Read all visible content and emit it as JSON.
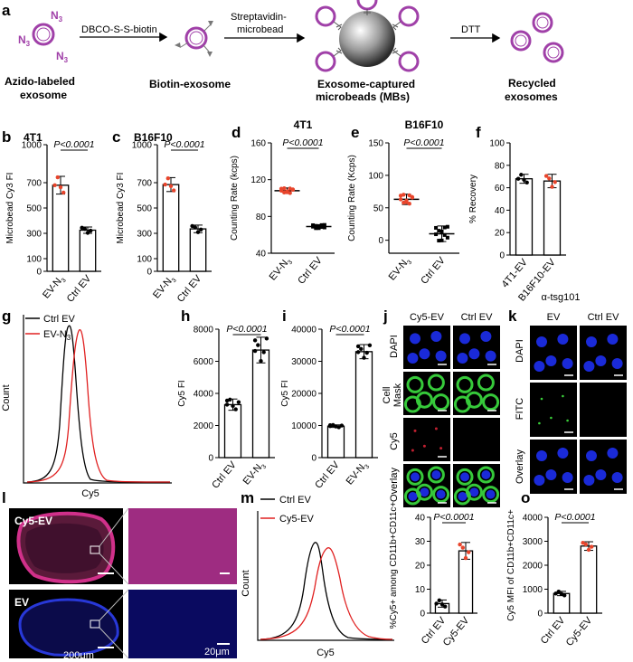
{
  "panel_a": {
    "letter": "a",
    "n3": "N",
    "n3_sub": "3",
    "steps": [
      "DBCO-S-S-biotin",
      "Streptavidin-",
      "microbead",
      "DTT"
    ],
    "stages": [
      "Azido-labeled",
      "exosome",
      "Biotin-exosome",
      "Exosome-captured",
      "microbeads (MBs)",
      "Recycled",
      "exosomes"
    ]
  },
  "chart_data": [
    {
      "id": "b",
      "type": "bar",
      "title": "4T1",
      "ylabel": "Microbead Cy3 FI",
      "categories": [
        "EV-N3",
        "Ctrl EV"
      ],
      "values": [
        680,
        325
      ],
      "errors": [
        70,
        25
      ],
      "ylim": [
        0,
        1000
      ],
      "yticks": [
        0,
        100,
        300,
        500,
        700,
        1000
      ],
      "significance": "P<0.0001",
      "bar_fill": "#ffffff",
      "point_color": "#e8452c"
    },
    {
      "id": "c",
      "type": "bar",
      "title": "B16F10",
      "ylabel": "Microbead Cy3 FI",
      "categories": [
        "EV-N3",
        "Ctrl EV"
      ],
      "values": [
        685,
        335
      ],
      "errors": [
        55,
        30
      ],
      "ylim": [
        0,
        1000
      ],
      "yticks": [
        0,
        100,
        300,
        500,
        700,
        1000
      ],
      "significance": "P<0.0001",
      "bar_fill": "#ffffff",
      "point_color": "#e8452c"
    },
    {
      "id": "d",
      "type": "scatter",
      "title": "4T1",
      "ylabel": "Counting Rate (kcps)",
      "categories": [
        "EV-N3",
        "Ctrl EV"
      ],
      "values": [
        108,
        69
      ],
      "errors": [
        3,
        2
      ],
      "ylim": [
        40,
        160
      ],
      "yticks": [
        40,
        80,
        120,
        160
      ],
      "significance": "P<0.0001"
    },
    {
      "id": "e",
      "type": "scatter",
      "title": "B16F10",
      "ylabel": "Counting Rate (Kcps)",
      "categories": [
        "EV-N3",
        "Ctrl EV"
      ],
      "values": [
        63,
        10
      ],
      "errors": [
        8,
        12
      ],
      "ylim": [
        -20,
        150
      ],
      "yticks": [
        0,
        50,
        100,
        150
      ],
      "significance": "P<0.0001"
    },
    {
      "id": "f",
      "type": "bar",
      "title": "",
      "ylabel": "% Recovery",
      "categories": [
        "4T1-EV",
        "B16F10-EV"
      ],
      "values": [
        68,
        66
      ],
      "errors": [
        4,
        6
      ],
      "ylim": [
        0,
        100
      ],
      "yticks": [
        0,
        20,
        40,
        60,
        80,
        100
      ],
      "significance": ""
    },
    {
      "id": "h",
      "type": "bar",
      "title": "",
      "ylabel": "Cy5 FI",
      "categories": [
        "Ctrl EV",
        "EV-N3"
      ],
      "values": [
        3300,
        6700
      ],
      "errors": [
        350,
        800
      ],
      "ylim": [
        0,
        8000
      ],
      "yticks": [
        0,
        2000,
        4000,
        6000,
        8000
      ],
      "significance": "P<0.0001"
    },
    {
      "id": "i",
      "type": "bar",
      "title": "",
      "ylabel": "Cy5 FI",
      "categories": [
        "Ctrl EV",
        "EV-N3"
      ],
      "values": [
        9800,
        33000
      ],
      "errors": [
        400,
        2200
      ],
      "ylim": [
        0,
        40000
      ],
      "yticks": [
        0,
        10000,
        20000,
        30000,
        40000
      ],
      "significance": "P<0.0001"
    },
    {
      "id": "n",
      "type": "bar",
      "title": "",
      "ylabel": "%Cy5+ among CD11b+CD11c+",
      "categories": [
        "Ctrl EV",
        "Cy5-EV"
      ],
      "values": [
        4,
        26
      ],
      "errors": [
        1.5,
        3.5
      ],
      "ylim": [
        0,
        40
      ],
      "yticks": [
        0,
        10,
        20,
        30,
        40
      ],
      "significance": "P<0.0001"
    },
    {
      "id": "o",
      "type": "bar",
      "title": "",
      "ylabel": "Cy5 MFI of CD11b+CD11c+",
      "categories": [
        "Ctrl EV",
        "Cy5-EV"
      ],
      "values": [
        820,
        2800
      ],
      "errors": [
        90,
        180
      ],
      "ylim": [
        0,
        4000
      ],
      "yticks": [
        0,
        1000,
        2000,
        3000,
        4000
      ],
      "significance": "P<0.0001"
    }
  ],
  "panel_g": {
    "letter": "g",
    "legend": [
      "Ctrl EV",
      "EV-N3"
    ],
    "xlabel": "Cy5",
    "ylabel": "Count",
    "colors": [
      "#000000",
      "#e02020"
    ]
  },
  "panel_m": {
    "letter": "m",
    "legend": [
      "Ctrl EV",
      "Cy5-EV"
    ],
    "xlabel": "Cy5",
    "ylabel": "Count",
    "colors": [
      "#000000",
      "#e02020"
    ]
  },
  "panel_j": {
    "letter": "j",
    "cols": [
      "Cy5-EV",
      "Ctrl EV"
    ],
    "rows": [
      "DAPI",
      "Cell Mask",
      "Cy5",
      "Overlay"
    ]
  },
  "panel_k": {
    "letter": "k",
    "title": "α-tsg101",
    "cols": [
      "EV",
      "Ctrl EV"
    ],
    "rows": [
      "DAPI",
      "FITC",
      "Overlay"
    ]
  },
  "panel_l": {
    "letter": "l",
    "labels": [
      "Cy5-EV",
      "EV"
    ],
    "scales": [
      "200μm",
      "20μm"
    ]
  }
}
